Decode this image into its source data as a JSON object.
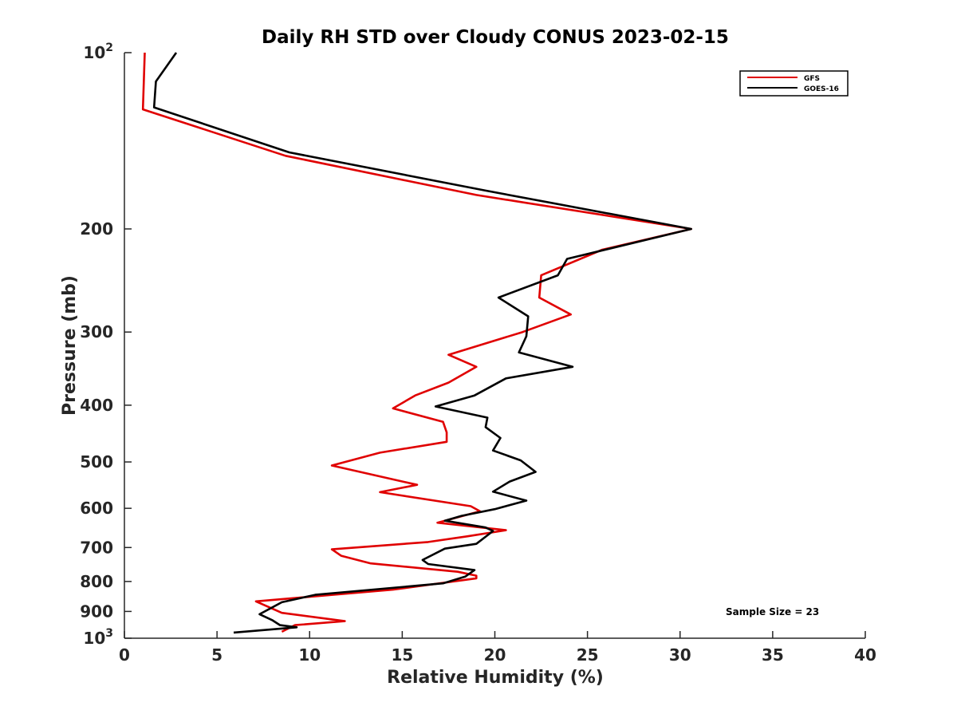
{
  "chart_data": {
    "type": "line",
    "title": "Daily RH STD over Cloudy CONUS 2023-02-15",
    "xlabel": "Relative Humidity (%)",
    "ylabel": "Pressure (mb)",
    "xlim": [
      0,
      40
    ],
    "ylim": [
      1000,
      100
    ],
    "yscale": "log",
    "x_ticks": [
      0,
      5,
      10,
      15,
      20,
      25,
      30,
      35,
      40
    ],
    "y_ticks": [
      {
        "value": 100,
        "base": "10",
        "exp": "2"
      },
      {
        "value": 200,
        "label": "200"
      },
      {
        "value": 300,
        "label": "300"
      },
      {
        "value": 400,
        "label": "400"
      },
      {
        "value": 500,
        "label": "500"
      },
      {
        "value": 600,
        "label": "600"
      },
      {
        "value": 700,
        "label": "700"
      },
      {
        "value": 800,
        "label": "800"
      },
      {
        "value": 900,
        "label": "900"
      },
      {
        "value": 1000,
        "base": "10",
        "exp": "3"
      }
    ],
    "legend_location": "top-right",
    "annotation": "Sample Size = 23",
    "series": [
      {
        "name": "GFS",
        "color": "#e00000",
        "points": [
          [
            1.1,
            100
          ],
          [
            1.0,
            125
          ],
          [
            1.0,
            125
          ],
          [
            8.7,
            150
          ],
          [
            19.0,
            175
          ],
          [
            30.6,
            200
          ],
          [
            25.8,
            217
          ],
          [
            22.5,
            240
          ],
          [
            22.4,
            262
          ],
          [
            24.1,
            280
          ],
          [
            21.5,
            300
          ],
          [
            17.5,
            328
          ],
          [
            19.0,
            344
          ],
          [
            17.5,
            366
          ],
          [
            15.7,
            385
          ],
          [
            14.5,
            405
          ],
          [
            17.2,
            427
          ],
          [
            17.4,
            445
          ],
          [
            17.4,
            462
          ],
          [
            13.8,
            482
          ],
          [
            11.2,
            507
          ],
          [
            15.8,
            547
          ],
          [
            13.8,
            563
          ],
          [
            18.7,
            595
          ],
          [
            19.2,
            607
          ],
          [
            16.9,
            635
          ],
          [
            20.6,
            654
          ],
          [
            18.5,
            670
          ],
          [
            16.4,
            685
          ],
          [
            11.2,
            705
          ],
          [
            11.7,
            723
          ],
          [
            13.3,
            745
          ],
          [
            18.0,
            770
          ],
          [
            19.0,
            782
          ],
          [
            19.0,
            790
          ],
          [
            14.5,
            826
          ],
          [
            7.1,
            865
          ],
          [
            8.5,
            905
          ],
          [
            11.9,
            935
          ],
          [
            9.2,
            950
          ],
          [
            8.5,
            975
          ]
        ]
      },
      {
        "name": "GOES-16",
        "color": "#000000",
        "points": [
          [
            2.8,
            100
          ],
          [
            1.7,
            112
          ],
          [
            1.6,
            124
          ],
          [
            8.9,
            148
          ],
          [
            19.5,
            172
          ],
          [
            30.6,
            200
          ],
          [
            23.9,
            225
          ],
          [
            23.4,
            240
          ],
          [
            20.2,
            262
          ],
          [
            21.8,
            282
          ],
          [
            21.7,
            305
          ],
          [
            21.3,
            325
          ],
          [
            24.2,
            344
          ],
          [
            20.6,
            360
          ],
          [
            18.9,
            385
          ],
          [
            16.8,
            402
          ],
          [
            19.6,
            420
          ],
          [
            19.5,
            436
          ],
          [
            20.3,
            455
          ],
          [
            19.9,
            478
          ],
          [
            21.4,
            497
          ],
          [
            22.2,
            520
          ],
          [
            20.8,
            540
          ],
          [
            19.9,
            562
          ],
          [
            21.7,
            582
          ],
          [
            20.0,
            602
          ],
          [
            18.2,
            618
          ],
          [
            17.3,
            630
          ],
          [
            19.5,
            647
          ],
          [
            19.9,
            656
          ],
          [
            19.0,
            690
          ],
          [
            17.3,
            703
          ],
          [
            16.1,
            735
          ],
          [
            16.4,
            747
          ],
          [
            18.9,
            765
          ],
          [
            18.4,
            785
          ],
          [
            17.2,
            806
          ],
          [
            10.3,
            843
          ],
          [
            8.5,
            868
          ],
          [
            7.3,
            910
          ],
          [
            8.0,
            932
          ],
          [
            8.4,
            950
          ],
          [
            9.3,
            958
          ],
          [
            5.9,
            978
          ]
        ]
      }
    ]
  }
}
